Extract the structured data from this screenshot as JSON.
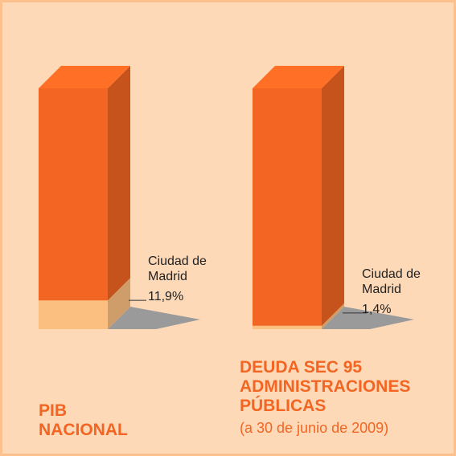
{
  "chart_data": {
    "type": "bar",
    "stacked": true,
    "categories": [
      "PIB NACIONAL",
      "DEUDA SEC 95 ADMINISTRACIONES PÚBLICAS"
    ],
    "category_notes": [
      null,
      "(a 30 de junio de 2009)"
    ],
    "series": [
      {
        "name": "Ciudad de Madrid",
        "color": "#fbbf80",
        "values": [
          11.9,
          1.4
        ],
        "value_labels": [
          "11,9%",
          "1,4%"
        ]
      },
      {
        "color": "#f26522",
        "values": [
          88.1,
          98.6
        ]
      }
    ],
    "ylim": [
      0,
      100
    ]
  }
}
